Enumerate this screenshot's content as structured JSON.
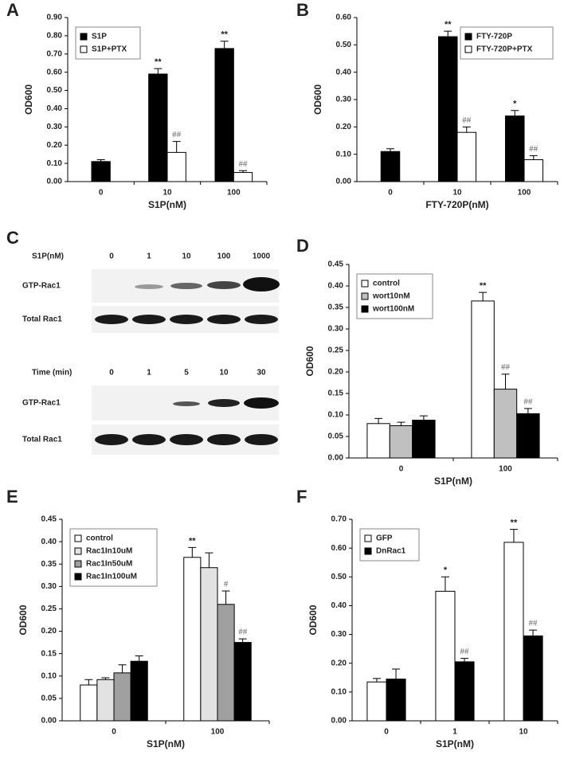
{
  "chart_data": [
    {
      "type": "bar",
      "panel": "A",
      "xlabel": "S1P(nM)",
      "ylabel": "OD600",
      "categories": [
        "0",
        "10",
        "100"
      ],
      "series": [
        {
          "name": "S1P",
          "color": "#000000",
          "values": [
            0.11,
            0.59,
            0.73
          ],
          "errors": [
            0.01,
            0.03,
            0.04
          ],
          "sig": [
            null,
            "**",
            "**"
          ]
        },
        {
          "name": "S1P+PTX",
          "color": "#ffffff",
          "values": [
            null,
            0.16,
            0.05
          ],
          "errors": [
            null,
            0.06,
            0.01
          ],
          "sig": [
            null,
            "##",
            "##"
          ]
        }
      ],
      "ylim": [
        0,
        0.9
      ],
      "yticks": [
        {
          "value": 0,
          "label": "0.00"
        },
        {
          "value": 0.1,
          "label": "0.10"
        },
        {
          "value": 0.2,
          "label": "0.20"
        },
        {
          "value": 0.3,
          "label": "0.30"
        },
        {
          "value": 0.4,
          "label": "0.40"
        },
        {
          "value": 0.5,
          "label": "0.50"
        },
        {
          "value": 0.6,
          "label": "0.60"
        },
        {
          "value": 0.7,
          "label": "0.70"
        },
        {
          "value": 0.8,
          "label": "0.80"
        },
        {
          "value": 0.9,
          "label": "0.90"
        }
      ],
      "legend": "upper left",
      "grid": false
    },
    {
      "type": "bar",
      "panel": "B",
      "xlabel": "FTY-720P(nM)",
      "ylabel": "OD600",
      "categories": [
        "0",
        "10",
        "100"
      ],
      "series": [
        {
          "name": "FTY-720P",
          "color": "#000000",
          "values": [
            0.11,
            0.53,
            0.24
          ],
          "errors": [
            0.01,
            0.02,
            0.02
          ],
          "sig": [
            null,
            "**",
            "*"
          ]
        },
        {
          "name": "FTY-720P+PTX",
          "color": "#ffffff",
          "values": [
            null,
            0.18,
            0.08
          ],
          "errors": [
            null,
            0.02,
            0.015
          ],
          "sig": [
            null,
            "##",
            "##"
          ]
        }
      ],
      "ylim": [
        0,
        0.6
      ],
      "yticks": [
        {
          "value": 0,
          "label": "0.00"
        },
        {
          "value": 0.1,
          "label": "0.10"
        },
        {
          "value": 0.2,
          "label": "0.20"
        },
        {
          "value": 0.3,
          "label": "0.30"
        },
        {
          "value": 0.4,
          "label": "0.40"
        },
        {
          "value": 0.5,
          "label": "0.50"
        },
        {
          "value": 0.6,
          "label": "0.60"
        }
      ],
      "legend": "upper right",
      "grid": false
    },
    {
      "type": "bar",
      "panel": "D",
      "xlabel": "S1P(nM)",
      "ylabel": "OD600",
      "categories": [
        "0",
        "100"
      ],
      "series": [
        {
          "name": "control",
          "color": "#ffffff",
          "values": [
            0.08,
            0.365
          ],
          "errors": [
            0.012,
            0.02
          ],
          "sig": [
            null,
            "**"
          ]
        },
        {
          "name": "wort10nM",
          "color": "#c0c0c0",
          "values": [
            0.075,
            0.16
          ],
          "errors": [
            0.008,
            0.035
          ],
          "sig": [
            null,
            "##"
          ]
        },
        {
          "name": "wort100nM",
          "color": "#000000",
          "values": [
            0.088,
            0.103
          ],
          "errors": [
            0.01,
            0.012
          ],
          "sig": [
            null,
            "##"
          ]
        }
      ],
      "ylim": [
        0,
        0.45
      ],
      "yticks": [
        {
          "value": 0,
          "label": "0.00"
        },
        {
          "value": 0.05,
          "label": "0.05"
        },
        {
          "value": 0.1,
          "label": "0.10"
        },
        {
          "value": 0.15,
          "label": "0.15"
        },
        {
          "value": 0.2,
          "label": "0.20"
        },
        {
          "value": 0.25,
          "label": "0.25"
        },
        {
          "value": 0.3,
          "label": "0.30"
        },
        {
          "value": 0.35,
          "label": "0.35"
        },
        {
          "value": 0.4,
          "label": "0.40"
        },
        {
          "value": 0.45,
          "label": "0.45"
        }
      ],
      "legend": "upper left",
      "grid": false
    },
    {
      "type": "bar",
      "panel": "E",
      "xlabel": "S1P(nM)",
      "ylabel": "OD600",
      "categories": [
        "0",
        "100"
      ],
      "series": [
        {
          "name": "control",
          "color": "#ffffff",
          "values": [
            0.08,
            0.365
          ],
          "errors": [
            0.012,
            0.022
          ],
          "sig": [
            null,
            "**"
          ]
        },
        {
          "name": "Rac1In10uM",
          "color": "#e2e2e2",
          "values": [
            0.092,
            0.342
          ],
          "errors": [
            0.004,
            0.033
          ],
          "sig": [
            null,
            null
          ]
        },
        {
          "name": "Rac1In50uM",
          "color": "#a0a0a0",
          "values": [
            0.107,
            0.26
          ],
          "errors": [
            0.018,
            0.03
          ],
          "sig": [
            null,
            "#"
          ]
        },
        {
          "name": "Rac1In100uM",
          "color": "#000000",
          "values": [
            0.133,
            0.175
          ],
          "errors": [
            0.012,
            0.008
          ],
          "sig": [
            null,
            "##"
          ]
        }
      ],
      "ylim": [
        0,
        0.45
      ],
      "yticks": [
        {
          "value": 0,
          "label": "0.00"
        },
        {
          "value": 0.05,
          "label": "0.05"
        },
        {
          "value": 0.1,
          "label": "0.10"
        },
        {
          "value": 0.15,
          "label": "0.15"
        },
        {
          "value": 0.2,
          "label": "0.20"
        },
        {
          "value": 0.25,
          "label": "0.25"
        },
        {
          "value": 0.3,
          "label": "0.30"
        },
        {
          "value": 0.35,
          "label": "0.35"
        },
        {
          "value": 0.4,
          "label": "0.40"
        },
        {
          "value": 0.45,
          "label": "0.45"
        }
      ],
      "legend": "upper left",
      "grid": false
    },
    {
      "type": "bar",
      "panel": "F",
      "xlabel": "S1P(nM)",
      "ylabel": "OD600",
      "categories": [
        "0",
        "1",
        "10"
      ],
      "series": [
        {
          "name": "GFP",
          "color": "#ffffff",
          "values": [
            0.135,
            0.45,
            0.62
          ],
          "errors": [
            0.012,
            0.05,
            0.045
          ],
          "sig": [
            null,
            "*",
            "**"
          ]
        },
        {
          "name": "DnRac1",
          "color": "#000000",
          "values": [
            0.145,
            0.205,
            0.295
          ],
          "errors": [
            0.035,
            0.012,
            0.02
          ],
          "sig": [
            null,
            "##",
            "##"
          ]
        }
      ],
      "ylim": [
        0,
        0.7
      ],
      "yticks": [
        {
          "value": 0,
          "label": "0.00"
        },
        {
          "value": 0.1,
          "label": "0.10"
        },
        {
          "value": 0.2,
          "label": "0.20"
        },
        {
          "value": 0.3,
          "label": "0.30"
        },
        {
          "value": 0.4,
          "label": "0.40"
        },
        {
          "value": 0.5,
          "label": "0.50"
        },
        {
          "value": 0.6,
          "label": "0.60"
        },
        {
          "value": 0.7,
          "label": "0.70"
        }
      ],
      "legend": "upper left",
      "grid": false
    }
  ],
  "blot": {
    "panel": "C",
    "top": {
      "header": "S1P(nM)",
      "lanes": [
        "0",
        "1",
        "10",
        "100",
        "1000"
      ],
      "rows": [
        "GTP-Rac1",
        "Total Rac1"
      ]
    },
    "bottom": {
      "header": "Time (min)",
      "lanes": [
        "0",
        "1",
        "5",
        "10",
        "30"
      ],
      "rows": [
        "GTP-Rac1",
        "Total Rac1"
      ]
    }
  }
}
